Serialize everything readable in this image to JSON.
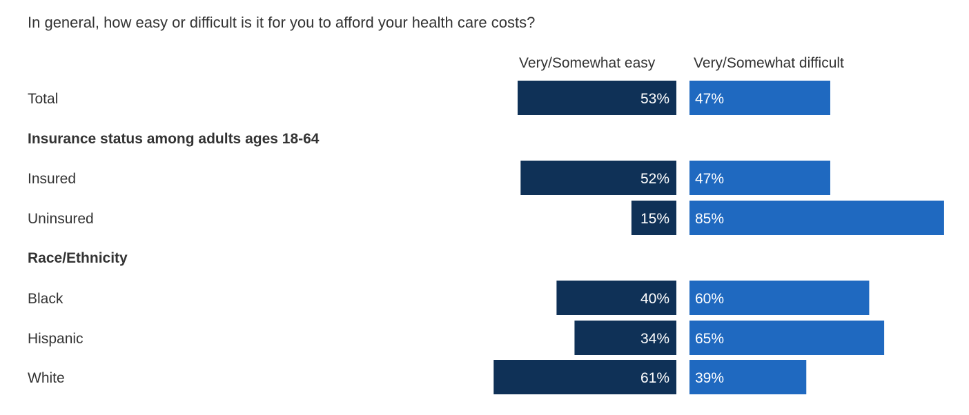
{
  "chart_data": {
    "type": "bar",
    "title": "In general, how easy or difficult is it for you to afford your health care costs?",
    "orientation": "horizontal-diverging",
    "xlim": [
      0,
      100
    ],
    "grid": false,
    "series_labels": [
      "Very/Somewhat easy",
      "Very/Somewhat difficult"
    ],
    "colors": {
      "easy": "#0f3157",
      "difficult": "#1f69c0"
    },
    "rows": [
      {
        "label": "Total",
        "type": "category",
        "easy": 53,
        "difficult": 47
      },
      {
        "label": "Insurance status among adults ages 18-64",
        "type": "group-header"
      },
      {
        "label": "Insured",
        "type": "category",
        "easy": 52,
        "difficult": 47
      },
      {
        "label": "Uninsured",
        "type": "category",
        "easy": 15,
        "difficult": 85
      },
      {
        "label": "Race/Ethnicity",
        "type": "group-header"
      },
      {
        "label": "Black",
        "type": "category",
        "easy": 40,
        "difficult": 60
      },
      {
        "label": "Hispanic",
        "type": "category",
        "easy": 34,
        "difficult": 65
      },
      {
        "label": "White",
        "type": "category",
        "easy": 61,
        "difficult": 39
      }
    ]
  }
}
